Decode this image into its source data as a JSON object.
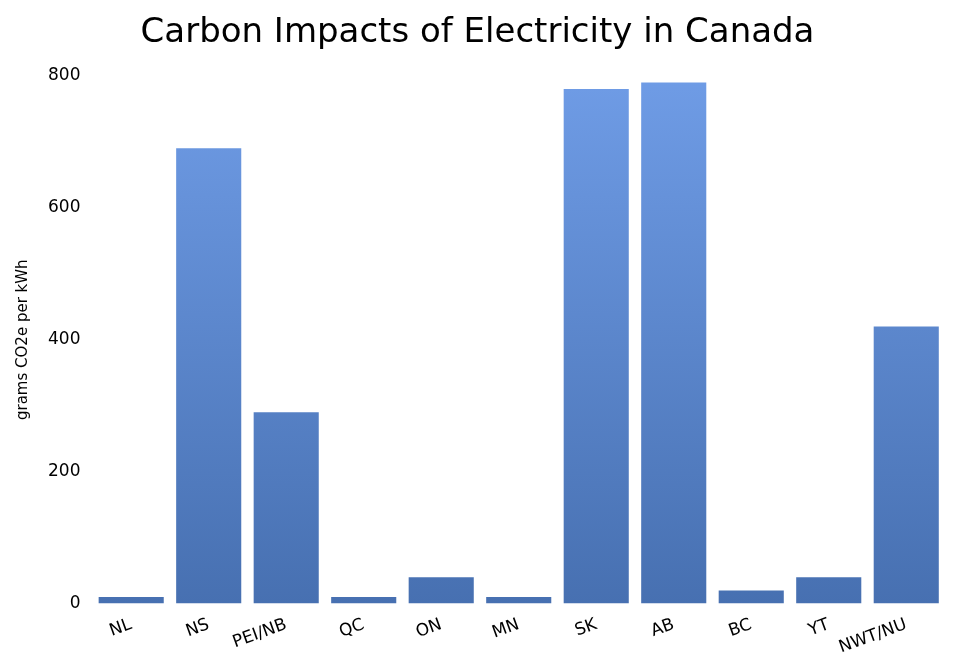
{
  "chart_data": {
    "type": "bar",
    "title": "Carbon Impacts of Electricity in Canada",
    "y_label": "grams CO2e per kWh",
    "categories": [
      "NL",
      "NS",
      "PEI/NB",
      "QC",
      "ON",
      "MN",
      "SK",
      "AB",
      "BC",
      "YT",
      "NWT/NU"
    ],
    "values": [
      10,
      690,
      290,
      10,
      40,
      10,
      780,
      790,
      20,
      40,
      420
    ],
    "color": "#5b8fe3",
    "ylim": [
      0,
      800
    ],
    "yticks": [
      0,
      200,
      400,
      600,
      800
    ],
    "grid": false
  }
}
